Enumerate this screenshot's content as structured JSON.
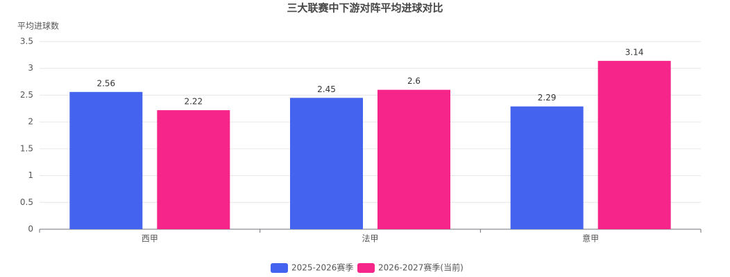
{
  "chart_data": {
    "type": "bar",
    "title": "三大联赛中下游对阵平均进球对比",
    "y_label": "平均进球数",
    "categories": [
      "西甲",
      "法甲",
      "意甲"
    ],
    "series": [
      {
        "name": "2025-2026赛季",
        "color": "#4463ee",
        "values": [
          2.56,
          2.45,
          2.29
        ]
      },
      {
        "name": "2026-2027赛季(当前)",
        "color": "#f5258a",
        "values": [
          2.22,
          2.6,
          3.14
        ]
      }
    ],
    "ylim": [
      0,
      3.5
    ],
    "yticks": [
      0,
      0.5,
      1,
      1.5,
      2,
      2.5,
      3,
      3.5
    ],
    "grid": true,
    "legend": "bottom"
  }
}
